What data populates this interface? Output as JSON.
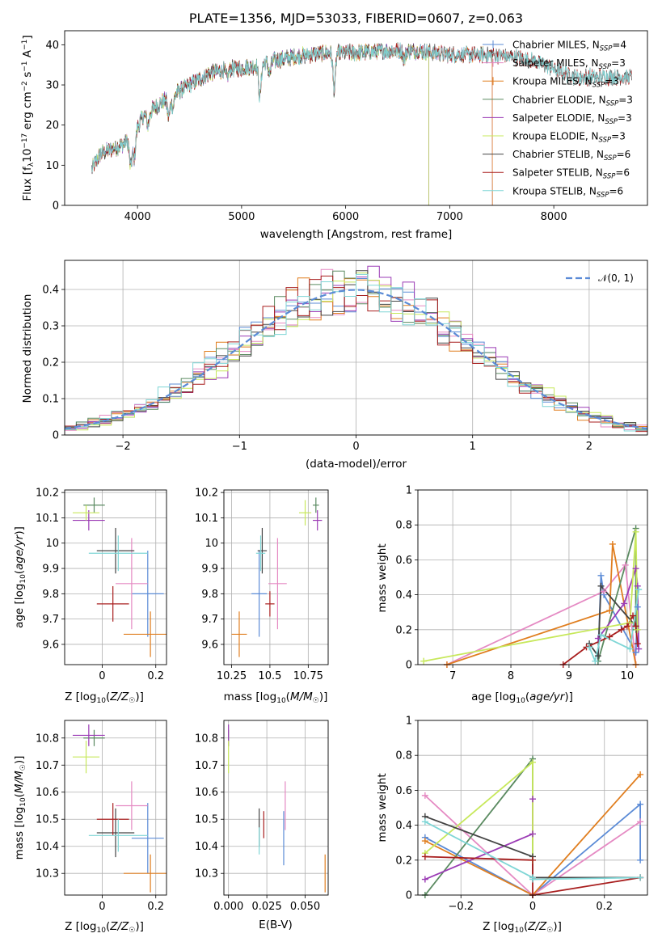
{
  "palette": {
    "Chabrier MILES": "#5b8bd6",
    "Salpeter MILES": "#e58ac3",
    "Kroupa MILES": "#e07e1f",
    "Chabrier ELODIE": "#5a8a60",
    "Salpeter ELODIE": "#9b3bb5",
    "Kroupa ELODIE": "#c7e85b",
    "Chabrier STELIB": "#444444",
    "Salpeter STELIB": "#a81e1e",
    "Kroupa STELIB": "#7fd6d6"
  },
  "chart_data": [
    {
      "id": "spectrum",
      "type": "line",
      "title": "PLATE=1356, MJD=53033, FIBERID=0607, z=0.063",
      "xlabel": "wavelength [Angstrom, rest frame]",
      "ylabel": "Flux [fλ10⁻¹⁷ erg cm⁻² s⁻¹ A⁻¹]",
      "xlim": [
        3300,
        8900
      ],
      "ylim": [
        0,
        43.5
      ],
      "xticks": [
        4000,
        5000,
        6000,
        7000,
        8000
      ],
      "yticks": [
        0,
        10,
        20,
        30,
        40
      ],
      "grid": false,
      "legend_position": "top-right",
      "continuum": {
        "x": [
          3560,
          3650,
          3750,
          3850,
          3950,
          4050,
          4150,
          4300,
          4500,
          4700,
          4900,
          5100,
          5300,
          5500,
          5800,
          6100,
          6400,
          6700,
          7000,
          7200,
          7400,
          7600,
          7800,
          8000,
          8200
        ],
        "y": [
          9,
          13,
          14,
          15,
          17,
          22,
          24,
          27,
          30,
          33,
          34,
          34.5,
          36,
          37,
          38,
          38,
          38.5,
          38.5,
          37.5,
          37.5,
          37.5,
          37,
          36,
          34,
          32
        ]
      },
      "series": [
        {
          "name": "Chabrier MILES",
          "label": "Chabrier MILES, N",
          "sub": "SSP",
          "suffix": "=4",
          "xmax": 7410
        },
        {
          "name": "Salpeter MILES",
          "label": "Salpeter MILES, N",
          "sub": "SSP",
          "suffix": "=3",
          "xmax": 7410
        },
        {
          "name": "Kroupa MILES",
          "label": "Kroupa MILES, N",
          "sub": "SSP",
          "suffix": "=3",
          "xmax": 7410
        },
        {
          "name": "Chabrier ELODIE",
          "label": "Chabrier ELODIE, N",
          "sub": "SSP",
          "suffix": "=3",
          "xmax": 6800
        },
        {
          "name": "Salpeter ELODIE",
          "label": "Salpeter ELODIE, N",
          "sub": "SSP",
          "suffix": "=3",
          "xmax": 6800
        },
        {
          "name": "Kroupa ELODIE",
          "label": "Kroupa ELODIE, N",
          "sub": "SSP",
          "suffix": "=3",
          "xmax": 6800
        },
        {
          "name": "Chabrier STELIB",
          "label": "Chabrier STELIB, N",
          "sub": "SSP",
          "suffix": "=6",
          "xmax": 8750
        },
        {
          "name": "Salpeter STELIB",
          "label": "Salpeter STELIB, N",
          "sub": "SSP",
          "suffix": "=6",
          "xmax": 8750
        },
        {
          "name": "Kroupa STELIB",
          "label": "Kroupa STELIB, N",
          "sub": "SSP",
          "suffix": "=6",
          "xmax": 8750
        }
      ]
    },
    {
      "id": "residuals",
      "type": "line",
      "xlabel": "(data-model)/error",
      "ylabel": "Normed distribution",
      "xlim": [
        -2.5,
        2.5
      ],
      "ylim": [
        0,
        0.48
      ],
      "xticks": [
        -2,
        -1,
        0,
        1,
        2
      ],
      "yticks": [
        0.0,
        0.1,
        0.2,
        0.3,
        0.4
      ],
      "grid": true,
      "legend_position": "top-right",
      "gaussian_label": "𝒩(0, 1)",
      "gaussian_color": "#5b8bd6",
      "bin_width": 0.1
    },
    {
      "id": "age_vs_Z",
      "type": "scatter",
      "xlabel": "Z [log₁₀(Z/Z☉)]",
      "ylabel": "age  [log₁₀(age/yr)]",
      "xlim": [
        -0.14,
        0.24
      ],
      "ylim": [
        9.52,
        10.21
      ],
      "xticks": [
        0.0,
        0.2
      ],
      "yticks": [
        9.6,
        9.7,
        9.8,
        9.9,
        10.0,
        10.1,
        10.2
      ],
      "grid": true,
      "points": [
        {
          "s": "Chabrier MILES",
          "x": 0.17,
          "y": 9.8,
          "xe": 0.06,
          "ye": 0.17
        },
        {
          "s": "Salpeter MILES",
          "x": 0.11,
          "y": 9.84,
          "xe": 0.06,
          "ye": 0.18
        },
        {
          "s": "Kroupa MILES",
          "x": 0.18,
          "y": 9.64,
          "xe": 0.1,
          "ye": 0.09
        },
        {
          "s": "Chabrier ELODIE",
          "x": -0.03,
          "y": 10.15,
          "xe": 0.04,
          "ye": 0.03
        },
        {
          "s": "Salpeter ELODIE",
          "x": -0.05,
          "y": 10.09,
          "xe": 0.06,
          "ye": 0.04
        },
        {
          "s": "Kroupa ELODIE",
          "x": -0.06,
          "y": 10.12,
          "xe": 0.05,
          "ye": 0.03
        },
        {
          "s": "Chabrier STELIB",
          "x": 0.05,
          "y": 9.97,
          "xe": 0.07,
          "ye": 0.09
        },
        {
          "s": "Salpeter STELIB",
          "x": 0.04,
          "y": 9.76,
          "xe": 0.06,
          "ye": 0.07
        },
        {
          "s": "Kroupa STELIB",
          "x": 0.06,
          "y": 9.96,
          "xe": 0.11,
          "ye": 0.07
        }
      ]
    },
    {
      "id": "age_vs_mass",
      "type": "scatter",
      "xlabel": "mass [log₁₀(M/M☉)]",
      "ylabel": "",
      "xlim": [
        10.2,
        10.88
      ],
      "ylim": [
        9.52,
        10.21
      ],
      "xticks": [
        10.25,
        10.5,
        10.75
      ],
      "yticks": [
        9.6,
        9.7,
        9.8,
        9.9,
        10.0,
        10.1,
        10.2
      ],
      "grid": true,
      "points": [
        {
          "s": "Chabrier MILES",
          "x": 10.43,
          "y": 9.8,
          "xe": 0.05,
          "ye": 0.17
        },
        {
          "s": "Salpeter MILES",
          "x": 10.55,
          "y": 9.84,
          "xe": 0.06,
          "ye": 0.18
        },
        {
          "s": "Kroupa MILES",
          "x": 10.3,
          "y": 9.64,
          "xe": 0.05,
          "ye": 0.09
        },
        {
          "s": "Chabrier ELODIE",
          "x": 10.8,
          "y": 10.15,
          "xe": 0.02,
          "ye": 0.03
        },
        {
          "s": "Salpeter ELODIE",
          "x": 10.81,
          "y": 10.09,
          "xe": 0.03,
          "ye": 0.04
        },
        {
          "s": "Kroupa ELODIE",
          "x": 10.73,
          "y": 10.12,
          "xe": 0.04,
          "ye": 0.05
        },
        {
          "s": "Chabrier STELIB",
          "x": 10.45,
          "y": 9.97,
          "xe": 0.03,
          "ye": 0.09
        },
        {
          "s": "Salpeter STELIB",
          "x": 10.5,
          "y": 9.76,
          "xe": 0.03,
          "ye": 0.05
        },
        {
          "s": "Kroupa STELIB",
          "x": 10.44,
          "y": 9.96,
          "xe": 0.03,
          "ye": 0.07
        }
      ]
    },
    {
      "id": "weight_vs_age",
      "type": "line",
      "xlabel": "age  [log₁₀(age/yr)]",
      "ylabel": "mass weight",
      "xlim": [
        6.4,
        10.35
      ],
      "ylim": [
        0.0,
        1.0
      ],
      "xticks": [
        7,
        8,
        9,
        10
      ],
      "yticks": [
        0.0,
        0.2,
        0.4,
        0.6,
        0.8,
        1.0
      ],
      "grid": true,
      "series": [
        {
          "s": "Chabrier MILES",
          "x": [
            9.5,
            9.55,
            9.6,
            10.15,
            10.18
          ],
          "y": [
            0.02,
            0.51,
            0.4,
            0.07,
            0.33
          ]
        },
        {
          "s": "Salpeter MILES",
          "x": [
            6.9,
            9.6,
            9.97,
            10.15
          ],
          "y": [
            0.0,
            0.42,
            0.57,
            0.0
          ]
        },
        {
          "s": "Kroupa MILES",
          "x": [
            6.9,
            9.7,
            9.75,
            10.15
          ],
          "y": [
            0.0,
            0.31,
            0.69,
            0.0
          ]
        },
        {
          "s": "Chabrier ELODIE",
          "x": [
            9.5,
            10.15,
            10.15
          ],
          "y": [
            0.02,
            0.78,
            0.2
          ]
        },
        {
          "s": "Salpeter ELODIE",
          "x": [
            9.5,
            9.95,
            10.15,
            10.18,
            10.2
          ],
          "y": [
            0.15,
            0.35,
            0.55,
            0.45,
            0.09
          ]
        },
        {
          "s": "Kroupa ELODIE",
          "x": [
            6.5,
            10.05,
            10.15,
            10.18
          ],
          "y": [
            0.02,
            0.24,
            0.76,
            0.2
          ]
        },
        {
          "s": "Chabrier STELIB",
          "x": [
            9.35,
            9.5,
            9.55,
            10.15
          ],
          "y": [
            0.12,
            0.05,
            0.45,
            0.22
          ]
        },
        {
          "s": "Salpeter STELIB",
          "x": [
            8.9,
            9.3,
            9.7,
            9.9,
            10.0,
            10.1,
            10.15,
            10.18
          ],
          "y": [
            0.0,
            0.1,
            0.16,
            0.2,
            0.22,
            0.28,
            0.22,
            0.12
          ]
        },
        {
          "s": "Kroupa STELIB",
          "x": [
            9.35,
            9.45,
            9.55,
            10.05,
            10.2
          ],
          "y": [
            0.1,
            0.02,
            0.17,
            0.09,
            0.43
          ]
        }
      ]
    },
    {
      "id": "mass_vs_Z",
      "type": "scatter",
      "xlabel": "Z [log₁₀(Z/Z☉)]",
      "ylabel": "mass [log₁₀(M/M☉)]",
      "xlim": [
        -0.14,
        0.24
      ],
      "ylim": [
        10.22,
        10.865
      ],
      "xticks": [
        0.0,
        0.2
      ],
      "yticks": [
        10.3,
        10.4,
        10.5,
        10.6,
        10.7,
        10.8
      ],
      "grid": true,
      "points": [
        {
          "s": "Chabrier MILES",
          "x": 0.17,
          "y": 10.43,
          "xe": 0.06,
          "ye": 0.13
        },
        {
          "s": "Salpeter MILES",
          "x": 0.11,
          "y": 10.55,
          "xe": 0.06,
          "ye": 0.09
        },
        {
          "s": "Kroupa MILES",
          "x": 0.18,
          "y": 10.3,
          "xe": 0.1,
          "ye": 0.07
        },
        {
          "s": "Chabrier ELODIE",
          "x": -0.03,
          "y": 10.8,
          "xe": 0.04,
          "ye": 0.03
        },
        {
          "s": "Salpeter ELODIE",
          "x": -0.05,
          "y": 10.81,
          "xe": 0.06,
          "ye": 0.04
        },
        {
          "s": "Kroupa ELODIE",
          "x": -0.06,
          "y": 10.73,
          "xe": 0.05,
          "ye": 0.06
        },
        {
          "s": "Chabrier STELIB",
          "x": 0.05,
          "y": 10.45,
          "xe": 0.07,
          "ye": 0.09
        },
        {
          "s": "Salpeter STELIB",
          "x": 0.04,
          "y": 10.5,
          "xe": 0.06,
          "ye": 0.06
        },
        {
          "s": "Kroupa STELIB",
          "x": 0.06,
          "y": 10.44,
          "xe": 0.11,
          "ye": 0.06
        }
      ]
    },
    {
      "id": "mass_vs_ebv",
      "type": "scatter",
      "xlabel": "E(B-V)",
      "ylabel": "",
      "xlim": [
        -0.003,
        0.065
      ],
      "ylim": [
        10.22,
        10.865
      ],
      "xticks": [
        0.0,
        0.025,
        0.05
      ],
      "xticklabels": [
        "0.000",
        "0.025",
        "0.050"
      ],
      "yticks": [
        10.3,
        10.4,
        10.5,
        10.6,
        10.7,
        10.8
      ],
      "grid": true,
      "points": [
        {
          "s": "Chabrier MILES",
          "x": 0.036,
          "y": 10.43,
          "xe": 0.0,
          "ye": 0.1
        },
        {
          "s": "Salpeter MILES",
          "x": 0.037,
          "y": 10.55,
          "xe": 0.0,
          "ye": 0.09
        },
        {
          "s": "Kroupa MILES",
          "x": 0.063,
          "y": 10.3,
          "xe": 0.0,
          "ye": 0.07
        },
        {
          "s": "Chabrier ELODIE",
          "x": 0.0,
          "y": 10.8,
          "xe": 0.0,
          "ye": 0.03
        },
        {
          "s": "Salpeter ELODIE",
          "x": 0.0,
          "y": 10.81,
          "xe": 0.0,
          "ye": 0.04
        },
        {
          "s": "Kroupa ELODIE",
          "x": 0.0,
          "y": 10.73,
          "xe": 0.0,
          "ye": 0.06
        },
        {
          "s": "Chabrier STELIB",
          "x": 0.02,
          "y": 10.47,
          "xe": 0.0,
          "ye": 0.07
        },
        {
          "s": "Salpeter STELIB",
          "x": 0.023,
          "y": 10.48,
          "xe": 0.0,
          "ye": 0.05
        },
        {
          "s": "Kroupa STELIB",
          "x": 0.02,
          "y": 10.42,
          "xe": 0.0,
          "ye": 0.05
        }
      ]
    },
    {
      "id": "weight_vs_Z",
      "type": "line",
      "xlabel": "Z [log₁₀(Z/Z☉)]",
      "ylabel": "mass weight",
      "xlim": [
        -0.32,
        0.32
      ],
      "ylim": [
        0.0,
        1.0
      ],
      "xticks": [
        -0.2,
        0.0,
        0.2
      ],
      "yticks": [
        0.0,
        0.2,
        0.4,
        0.6,
        0.8,
        1.0
      ],
      "grid": true,
      "series": [
        {
          "s": "Chabrier MILES",
          "x": [
            -0.3,
            0.0,
            0.3,
            0.3
          ],
          "y": [
            0.33,
            0.0,
            0.52,
            0.2
          ]
        },
        {
          "s": "Salpeter MILES",
          "x": [
            -0.3,
            0.0,
            0.3
          ],
          "y": [
            0.57,
            0.0,
            0.42
          ]
        },
        {
          "s": "Kroupa MILES",
          "x": [
            -0.3,
            0.0,
            0.3
          ],
          "y": [
            0.31,
            0.0,
            0.69
          ]
        },
        {
          "s": "Chabrier ELODIE",
          "x": [
            -0.3,
            0.0,
            0.0
          ],
          "y": [
            0.0,
            0.78,
            0.2
          ]
        },
        {
          "s": "Salpeter ELODIE",
          "x": [
            -0.3,
            0.0,
            0.0
          ],
          "y": [
            0.09,
            0.35,
            0.55
          ]
        },
        {
          "s": "Kroupa ELODIE",
          "x": [
            -0.3,
            0.0,
            0.0
          ],
          "y": [
            0.24,
            0.76,
            0.2
          ]
        },
        {
          "s": "Chabrier STELIB",
          "x": [
            -0.3,
            0.0,
            0.0,
            0.3
          ],
          "y": [
            0.45,
            0.22,
            0.1,
            0.1
          ]
        },
        {
          "s": "Salpeter STELIB",
          "x": [
            -0.3,
            0.0,
            0.0,
            0.3
          ],
          "y": [
            0.22,
            0.2,
            0.0,
            0.1
          ]
        },
        {
          "s": "Kroupa STELIB",
          "x": [
            -0.3,
            0.0,
            0.0,
            0.3
          ],
          "y": [
            0.42,
            0.1,
            0.09,
            0.1
          ]
        }
      ]
    }
  ]
}
